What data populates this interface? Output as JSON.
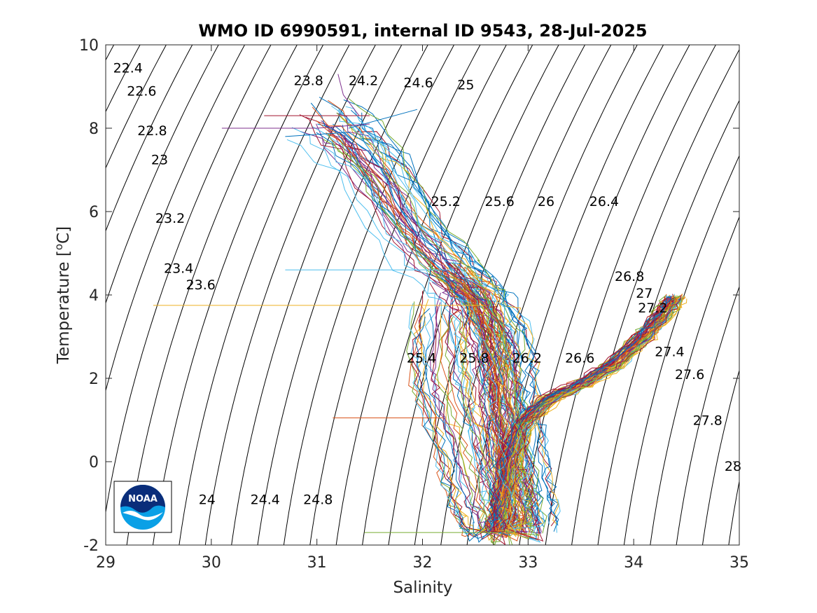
{
  "chart_data": {
    "type": "line",
    "title": "WMO ID 6990591, internal ID 9543, 28-Jul-2025",
    "xlabel": "Salinity",
    "ylabel": "Temperature [",
    "ylabel_sup": "o",
    "ylabel_end": "C]",
    "xlim": [
      29,
      35
    ],
    "ylim": [
      -2,
      10
    ],
    "xticks": [
      29,
      30,
      31,
      32,
      33,
      34,
      35
    ],
    "yticks": [
      -2,
      0,
      2,
      4,
      6,
      8,
      10
    ],
    "xtick_labels": [
      "29",
      "30",
      "31",
      "32",
      "33",
      "34",
      "35"
    ],
    "ytick_labels": [
      "-2",
      "0",
      "2",
      "4",
      "6",
      "8",
      "10"
    ],
    "grid": false,
    "legend": "none",
    "density_contours": {
      "color": "#000000",
      "sigma_min": 22.0,
      "sigma_max": 28.6,
      "sigma_step": 0.2,
      "labels": [
        {
          "text": "22.4",
          "x": 29.07,
          "y": 9.45
        },
        {
          "text": "22.6",
          "x": 29.2,
          "y": 8.9
        },
        {
          "text": "22.8",
          "x": 29.3,
          "y": 7.95
        },
        {
          "text": "23",
          "x": 29.43,
          "y": 7.25
        },
        {
          "text": "23.2",
          "x": 29.47,
          "y": 5.85
        },
        {
          "text": "23.4",
          "x": 29.55,
          "y": 4.65
        },
        {
          "text": "23.6",
          "x": 29.76,
          "y": 4.25
        },
        {
          "text": "23.8",
          "x": 30.78,
          "y": 9.15
        },
        {
          "text": "24.2",
          "x": 31.3,
          "y": 9.15
        },
        {
          "text": "24.6",
          "x": 31.82,
          "y": 9.1
        },
        {
          "text": "25",
          "x": 32.33,
          "y": 9.05
        },
        {
          "text": "25.2",
          "x": 32.08,
          "y": 6.25
        },
        {
          "text": "25.6",
          "x": 32.59,
          "y": 6.25
        },
        {
          "text": "26",
          "x": 33.09,
          "y": 6.25
        },
        {
          "text": "26.4",
          "x": 33.58,
          "y": 6.25
        },
        {
          "text": "26.8",
          "x": 33.82,
          "y": 4.45
        },
        {
          "text": "27",
          "x": 34.02,
          "y": 4.05
        },
        {
          "text": "27.2",
          "x": 34.04,
          "y": 3.7
        },
        {
          "text": "25.4",
          "x": 31.85,
          "y": 2.5
        },
        {
          "text": "25.8",
          "x": 32.35,
          "y": 2.5
        },
        {
          "text": "26.2",
          "x": 32.85,
          "y": 2.5
        },
        {
          "text": "26.6",
          "x": 33.35,
          "y": 2.5
        },
        {
          "text": "27.4",
          "x": 34.2,
          "y": 2.65
        },
        {
          "text": "27.6",
          "x": 34.39,
          "y": 2.1
        },
        {
          "text": "27.8",
          "x": 34.56,
          "y": 1.0
        },
        {
          "text": "28",
          "x": 34.86,
          "y": -0.1
        },
        {
          "text": "24",
          "x": 29.88,
          "y": -0.9
        },
        {
          "text": "24.4",
          "x": 30.37,
          "y": -0.9
        },
        {
          "text": "24.8",
          "x": 30.87,
          "y": -0.9
        }
      ]
    },
    "profile_colors": [
      "#0072bd",
      "#d95319",
      "#edb120",
      "#7e2f8e",
      "#77ac30",
      "#4dbeee",
      "#a2142f"
    ],
    "profile_count": 120,
    "profile_envelope": {
      "surface_warm_to_intermediate": [
        [
          31.1,
          8.2
        ],
        [
          31.5,
          7.3
        ],
        [
          31.9,
          5.6
        ],
        [
          32.3,
          4.5
        ],
        [
          32.55,
          3.9
        ],
        [
          32.7,
          3.0
        ],
        [
          32.75,
          2.0
        ],
        [
          32.8,
          1.0
        ],
        [
          32.85,
          0.0
        ],
        [
          32.9,
          -0.8
        ],
        [
          32.95,
          -1.6
        ]
      ],
      "cold_core_to_deep": [
        [
          32.7,
          -1.65
        ],
        [
          32.75,
          -1.0
        ],
        [
          32.82,
          0.0
        ],
        [
          32.95,
          0.9
        ],
        [
          33.2,
          1.5
        ],
        [
          33.5,
          1.85
        ],
        [
          33.8,
          2.3
        ],
        [
          34.1,
          3.0
        ],
        [
          34.3,
          3.6
        ],
        [
          34.4,
          3.95
        ]
      ],
      "shelf_branch": [
        [
          32.2,
          3.8
        ],
        [
          32.15,
          2.6
        ],
        [
          32.2,
          1.6
        ],
        [
          32.35,
          0.6
        ],
        [
          32.45,
          -0.4
        ],
        [
          32.55,
          -1.2
        ],
        [
          32.65,
          -1.7
        ]
      ]
    },
    "surface_spikes": [
      {
        "s": [
          31.95,
          31.3
        ],
        "t": [
          8.45,
          8.0
        ]
      },
      {
        "s": [
          30.1,
          31.0,
          31.5
        ],
        "t": [
          8.0,
          8.0,
          8.1
        ]
      },
      {
        "s": [
          30.5,
          31.5
        ],
        "t": [
          8.3,
          8.3
        ]
      },
      {
        "s": [
          29.45,
          32.6
        ],
        "t": [
          3.75,
          3.75
        ]
      },
      {
        "s": [
          30.7,
          32.3
        ],
        "t": [
          4.6,
          4.6
        ]
      },
      {
        "s": [
          31.15,
          32.2
        ],
        "t": [
          1.05,
          1.05
        ]
      },
      {
        "s": [
          31.45,
          32.7
        ],
        "t": [
          -1.7,
          -1.7
        ]
      },
      {
        "s": [
          30.7,
          31.3,
          31.5
        ],
        "t": [
          7.8,
          7.9,
          7.6
        ]
      },
      {
        "s": [
          31.2,
          31.25,
          31.4
        ],
        "t": [
          9.3,
          8.8,
          8.3
        ]
      }
    ]
  },
  "logo": {
    "text": "NOAA",
    "outer_color": "#ffffff",
    "top_color": "#0a2d7a",
    "bottom_color": "#0aa0e6",
    "border_color": "#000000"
  }
}
